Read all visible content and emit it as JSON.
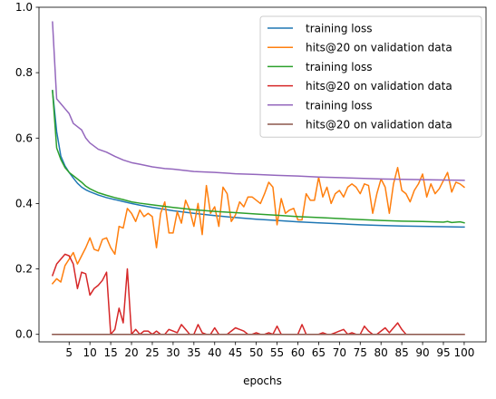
{
  "chart_data": {
    "type": "line",
    "title": "",
    "xlabel": "epochs",
    "ylabel": "",
    "xlim": [
      -2.25,
      105.25
    ],
    "ylim": [
      -0.023,
      1.0
    ],
    "xticks": [
      5,
      10,
      15,
      20,
      25,
      30,
      35,
      40,
      45,
      50,
      55,
      60,
      65,
      70,
      75,
      80,
      85,
      90,
      95,
      100
    ],
    "yticks": [
      0.0,
      0.2,
      0.4,
      0.6,
      0.8,
      1.0
    ],
    "ytick_labels": [
      "0.0",
      "0.2",
      "0.4",
      "0.6",
      "0.8",
      "1.0"
    ],
    "grid": false,
    "legend_position": "top-right",
    "series": [
      {
        "name": "training loss",
        "color": "#1f77b4",
        "x": [
          1,
          2,
          3,
          4,
          5,
          6,
          7,
          8,
          9,
          10,
          12,
          14,
          16,
          18,
          20,
          22,
          25,
          28,
          30,
          35,
          40,
          45,
          50,
          55,
          60,
          65,
          70,
          75,
          80,
          85,
          90,
          95,
          100
        ],
        "values": [
          0.745,
          0.62,
          0.545,
          0.515,
          0.495,
          0.478,
          0.462,
          0.45,
          0.442,
          0.436,
          0.426,
          0.418,
          0.412,
          0.406,
          0.4,
          0.395,
          0.388,
          0.382,
          0.378,
          0.37,
          0.363,
          0.357,
          0.352,
          0.348,
          0.344,
          0.341,
          0.338,
          0.335,
          0.333,
          0.331,
          0.33,
          0.329,
          0.328
        ]
      },
      {
        "name": "hits@20 on validation data",
        "color": "#ff7f0e",
        "x": [
          1,
          2,
          3,
          4,
          5,
          6,
          7,
          8,
          9,
          10,
          11,
          12,
          13,
          14,
          15,
          16,
          17,
          18,
          19,
          20,
          21,
          22,
          23,
          24,
          25,
          26,
          27,
          28,
          29,
          30,
          31,
          32,
          33,
          34,
          35,
          36,
          37,
          38,
          39,
          40,
          41,
          42,
          43,
          44,
          45,
          46,
          47,
          48,
          49,
          50,
          51,
          52,
          53,
          54,
          55,
          56,
          57,
          58,
          59,
          60,
          61,
          62,
          63,
          64,
          65,
          66,
          67,
          68,
          69,
          70,
          71,
          72,
          73,
          74,
          75,
          76,
          77,
          78,
          79,
          80,
          81,
          82,
          83,
          84,
          85,
          86,
          87,
          88,
          89,
          90,
          91,
          92,
          93,
          94,
          95,
          96,
          97,
          98,
          99,
          100
        ],
        "values": [
          0.155,
          0.17,
          0.16,
          0.21,
          0.23,
          0.25,
          0.215,
          0.24,
          0.265,
          0.295,
          0.26,
          0.255,
          0.29,
          0.295,
          0.265,
          0.245,
          0.33,
          0.325,
          0.385,
          0.37,
          0.345,
          0.38,
          0.36,
          0.37,
          0.36,
          0.265,
          0.37,
          0.405,
          0.31,
          0.31,
          0.375,
          0.34,
          0.41,
          0.38,
          0.33,
          0.4,
          0.305,
          0.455,
          0.37,
          0.39,
          0.33,
          0.45,
          0.43,
          0.345,
          0.365,
          0.405,
          0.39,
          0.42,
          0.42,
          0.41,
          0.4,
          0.43,
          0.465,
          0.45,
          0.335,
          0.415,
          0.37,
          0.38,
          0.385,
          0.35,
          0.35,
          0.43,
          0.41,
          0.41,
          0.48,
          0.42,
          0.45,
          0.4,
          0.43,
          0.44,
          0.42,
          0.45,
          0.46,
          0.45,
          0.43,
          0.46,
          0.455,
          0.37,
          0.43,
          0.475,
          0.45,
          0.37,
          0.46,
          0.51,
          0.44,
          0.43,
          0.405,
          0.44,
          0.46,
          0.49,
          0.42,
          0.46,
          0.43,
          0.445,
          0.47,
          0.495,
          0.435,
          0.465,
          0.46,
          0.45
        ]
      },
      {
        "name": "training loss",
        "color": "#2ca02c",
        "x": [
          1,
          2,
          3,
          4,
          5,
          6,
          7,
          8,
          9,
          10,
          12,
          14,
          16,
          18,
          20,
          22,
          25,
          28,
          30,
          35,
          40,
          45,
          50,
          55,
          60,
          65,
          70,
          75,
          80,
          85,
          90,
          95,
          96,
          97,
          98,
          99,
          100
        ],
        "values": [
          0.745,
          0.57,
          0.535,
          0.51,
          0.495,
          0.485,
          0.475,
          0.465,
          0.453,
          0.445,
          0.433,
          0.425,
          0.418,
          0.412,
          0.405,
          0.401,
          0.396,
          0.391,
          0.388,
          0.381,
          0.376,
          0.372,
          0.368,
          0.364,
          0.36,
          0.357,
          0.354,
          0.351,
          0.348,
          0.346,
          0.345,
          0.343,
          0.345,
          0.342,
          0.343,
          0.344,
          0.341
        ]
      },
      {
        "name": "hits@20 on validation data",
        "color": "#d62728",
        "x": [
          1,
          2,
          3,
          4,
          5,
          6,
          7,
          8,
          9,
          10,
          11,
          12,
          13,
          14,
          15,
          16,
          17,
          18,
          19,
          20,
          21,
          22,
          23,
          24,
          25,
          26,
          27,
          28,
          29,
          30,
          31,
          32,
          33,
          34,
          35,
          36,
          37,
          38,
          39,
          40,
          41,
          42,
          43,
          44,
          45,
          46,
          47,
          48,
          49,
          50,
          51,
          52,
          53,
          54,
          55,
          56,
          57,
          58,
          59,
          60,
          61,
          62,
          63,
          64,
          65,
          66,
          67,
          68,
          69,
          70,
          71,
          72,
          73,
          74,
          75,
          76,
          77,
          78,
          79,
          80,
          81,
          82,
          83,
          84,
          85,
          86,
          87,
          88,
          89,
          90,
          91,
          92,
          93,
          94,
          95,
          96,
          97,
          98,
          99,
          100
        ],
        "values": [
          0.18,
          0.215,
          0.23,
          0.245,
          0.24,
          0.215,
          0.14,
          0.19,
          0.185,
          0.12,
          0.14,
          0.15,
          0.165,
          0.19,
          0.0,
          0.015,
          0.08,
          0.035,
          0.2,
          0.0,
          0.015,
          0.0,
          0.01,
          0.01,
          0.0,
          0.01,
          0.0,
          0.0,
          0.015,
          0.01,
          0.005,
          0.03,
          0.015,
          0.0,
          0.0,
          0.03,
          0.005,
          0.0,
          0.0,
          0.02,
          0.0,
          0.0,
          0.0,
          0.01,
          0.02,
          0.015,
          0.01,
          0.0,
          0.0,
          0.005,
          0.0,
          0.0,
          0.005,
          0.0,
          0.025,
          0.0,
          0.0,
          0.0,
          0.0,
          0.0,
          0.03,
          0.0,
          0.0,
          0.0,
          0.0,
          0.005,
          0.0,
          0.0,
          0.005,
          0.01,
          0.015,
          0.0,
          0.005,
          0.0,
          0.0,
          0.025,
          0.01,
          0.0,
          0.0,
          0.01,
          0.02,
          0.005,
          0.02,
          0.035,
          0.015,
          0.0,
          0.0,
          0.0,
          0.0,
          0.0,
          0.0,
          0.0,
          0.0,
          0.0,
          0.0,
          0.0,
          0.0,
          0.0,
          0.0,
          0.0
        ]
      },
      {
        "name": "training loss",
        "color": "#9467bd",
        "x": [
          1,
          2,
          3,
          4,
          5,
          6,
          7,
          8,
          9,
          10,
          12,
          14,
          16,
          18,
          20,
          22,
          25,
          28,
          30,
          35,
          40,
          45,
          50,
          55,
          60,
          65,
          70,
          75,
          80,
          85,
          90,
          95,
          100
        ],
        "values": [
          0.955,
          0.72,
          0.705,
          0.69,
          0.675,
          0.645,
          0.635,
          0.625,
          0.6,
          0.585,
          0.566,
          0.557,
          0.544,
          0.533,
          0.525,
          0.52,
          0.512,
          0.507,
          0.505,
          0.498,
          0.495,
          0.491,
          0.489,
          0.486,
          0.484,
          0.481,
          0.479,
          0.477,
          0.475,
          0.474,
          0.473,
          0.472,
          0.471
        ]
      },
      {
        "name": "hits@20 on validation data",
        "color": "#8c564b",
        "x": [
          1,
          100
        ],
        "values": [
          0.0,
          0.0
        ]
      }
    ]
  }
}
